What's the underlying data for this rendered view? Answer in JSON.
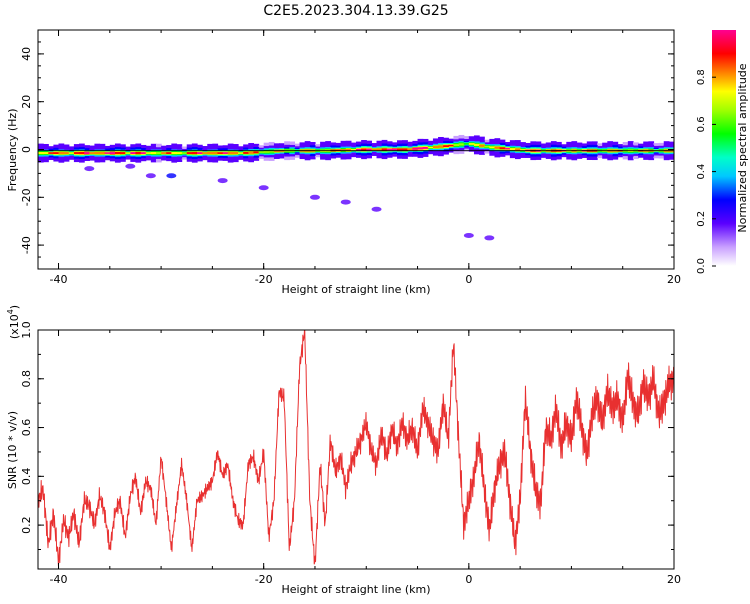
{
  "title": "C2E5.2023.304.13.39.G25",
  "colors": {
    "snr_line": "#e83030",
    "axis": "#000000",
    "background": "#ffffff"
  },
  "colorbar": {
    "label": "Normalized spectral amplitude",
    "range": [
      0,
      1
    ],
    "ticks": [
      "0.0",
      "0.2",
      "0.4",
      "0.6",
      "0.8"
    ],
    "tick_values": [
      0.0,
      0.2,
      0.4,
      0.6,
      0.8
    ],
    "colormap": "rainbow-white-purple-to-red"
  },
  "chart_data": [
    {
      "type": "heatmap",
      "xlabel": "Height of straight line (km)",
      "ylabel": "Frequency (Hz)",
      "xlim": [
        -42,
        20
      ],
      "ylim": [
        -50,
        50
      ],
      "xticks": [
        "-40",
        "-20",
        "0",
        "20"
      ],
      "xtick_values": [
        -40,
        -20,
        0,
        20
      ],
      "yticks": [
        "-40",
        "-20",
        "0",
        "20",
        "40"
      ],
      "ytick_values": [
        -40,
        -20,
        0,
        20,
        40
      ],
      "ridge": {
        "x": [
          -42,
          -38,
          -34,
          -30,
          -26,
          -22,
          -18,
          -14,
          -10,
          -6,
          -2,
          0,
          2,
          6,
          10,
          14,
          18,
          20
        ],
        "freq": [
          -1.5,
          -1.5,
          -1.5,
          -1.5,
          -1.5,
          -1.5,
          -0.5,
          -0.5,
          0,
          0,
          1.5,
          2.5,
          1,
          -0.5,
          -0.5,
          -0.5,
          -0.5,
          -0.5
        ],
        "amplitude": [
          0.75,
          0.85,
          0.9,
          0.7,
          0.85,
          0.8,
          0.65,
          0.75,
          0.85,
          0.9,
          0.8,
          0.6,
          0.75,
          0.85,
          0.8,
          0.75,
          0.7,
          0.75
        ]
      },
      "scatter_blobs": {
        "x": [
          -37,
          -33,
          -31,
          -29,
          -24,
          -20,
          -15,
          -12,
          -9,
          0,
          2
        ],
        "freq": [
          -8,
          -7,
          -11,
          -11,
          -13,
          -16,
          -20,
          -22,
          -25,
          -36,
          -37
        ],
        "amplitude": [
          0.1,
          0.08,
          0.12,
          0.15,
          0.1,
          0.08,
          0.1,
          0.08,
          0.08,
          0.06,
          0.05
        ]
      }
    },
    {
      "type": "line",
      "xlabel": "Height of straight line (km)",
      "ylabel": "SNR (10 * v/v)",
      "yscale_label": "(x10",
      "yscale_exp": "4",
      "yscale_close": ")",
      "xlim": [
        -42,
        20
      ],
      "ylim": [
        0.02,
        1.0
      ],
      "xticks": [
        "-40",
        "-20",
        "0",
        "20"
      ],
      "xtick_values": [
        -40,
        -20,
        0,
        20
      ],
      "yticks": [
        "0.2",
        "0.4",
        "0.6",
        "0.8",
        "1.0"
      ],
      "ytick_values": [
        0.2,
        0.4,
        0.6,
        0.8,
        1.0
      ],
      "series": [
        {
          "x": [
            -42,
            -41.5,
            -41,
            -40.5,
            -40,
            -39.5,
            -39,
            -38.5,
            -38,
            -37.5,
            -37,
            -36.5,
            -36,
            -35.5,
            -35,
            -34.5,
            -34,
            -33.5,
            -33,
            -32.5,
            -32,
            -31.5,
            -31,
            -30.5,
            -30,
            -29.5,
            -29,
            -28.5,
            -28,
            -27.5,
            -27,
            -26.5,
            -26,
            -25.5,
            -25,
            -24.5,
            -24,
            -23.5,
            -23,
            -22.5,
            -22,
            -21.5,
            -21,
            -20.5,
            -20,
            -19.5,
            -19,
            -18.5,
            -18,
            -17.5,
            -17,
            -16.5,
            -16,
            -15.5,
            -15,
            -14.5,
            -14,
            -13.5,
            -13,
            -12.5,
            -12,
            -11.5,
            -11,
            -10.5,
            -10,
            -9.5,
            -9,
            -8.5,
            -8,
            -7.5,
            -7,
            -6.5,
            -6,
            -5.5,
            -5,
            -4.5,
            -4,
            -3.5,
            -3,
            -2.5,
            -2,
            -1.5,
            -1,
            -0.5,
            0,
            0.5,
            1,
            1.5,
            2,
            2.5,
            3,
            3.5,
            4,
            4.5,
            5,
            5.5,
            6,
            6.5,
            7,
            7.5,
            8,
            8.5,
            9,
            9.5,
            10,
            10.5,
            11,
            11.5,
            12,
            12.5,
            13,
            13.5,
            14,
            14.5,
            15,
            15.5,
            16,
            16.5,
            17,
            17.5,
            18,
            18.5,
            19,
            19.5,
            20
          ],
          "values": [
            0.3,
            0.35,
            0.12,
            0.25,
            0.05,
            0.22,
            0.15,
            0.25,
            0.12,
            0.3,
            0.28,
            0.2,
            0.32,
            0.25,
            0.1,
            0.25,
            0.3,
            0.15,
            0.32,
            0.4,
            0.25,
            0.38,
            0.35,
            0.2,
            0.48,
            0.3,
            0.1,
            0.28,
            0.45,
            0.3,
            0.1,
            0.3,
            0.32,
            0.35,
            0.38,
            0.5,
            0.4,
            0.45,
            0.3,
            0.22,
            0.2,
            0.45,
            0.48,
            0.38,
            0.5,
            0.15,
            0.3,
            0.75,
            0.72,
            0.1,
            0.3,
            0.85,
            1.0,
            0.3,
            0.03,
            0.45,
            0.2,
            0.55,
            0.42,
            0.48,
            0.35,
            0.45,
            0.5,
            0.55,
            0.62,
            0.5,
            0.45,
            0.58,
            0.48,
            0.6,
            0.52,
            0.62,
            0.55,
            0.6,
            0.5,
            0.68,
            0.62,
            0.55,
            0.5,
            0.7,
            0.55,
            0.95,
            0.55,
            0.2,
            0.3,
            0.4,
            0.55,
            0.35,
            0.18,
            0.35,
            0.45,
            0.5,
            0.3,
            0.12,
            0.3,
            0.72,
            0.5,
            0.35,
            0.28,
            0.6,
            0.55,
            0.68,
            0.52,
            0.62,
            0.55,
            0.72,
            0.6,
            0.48,
            0.65,
            0.72,
            0.62,
            0.75,
            0.68,
            0.72,
            0.62,
            0.82,
            0.7,
            0.65,
            0.78,
            0.72,
            0.8,
            0.65,
            0.7,
            0.78,
            0.8
          ]
        }
      ]
    }
  ]
}
